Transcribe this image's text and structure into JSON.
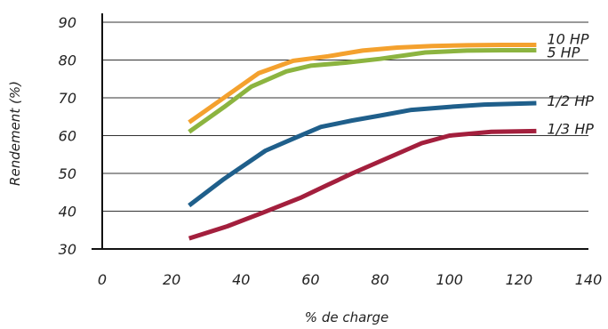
{
  "chart_data": {
    "type": "line",
    "xlabel": "% de charge",
    "ylabel": "Rendement (%)",
    "xlim": [
      0,
      140
    ],
    "ylim": [
      30,
      90
    ],
    "xticks": [
      0,
      20,
      40,
      60,
      80,
      100,
      120,
      140
    ],
    "yticks": [
      30,
      40,
      50,
      60,
      70,
      80,
      90
    ],
    "grid": "horizontal",
    "series": [
      {
        "name": "10 HP",
        "color": "#f4a12e",
        "points": [
          [
            25,
            63.5
          ],
          [
            35,
            70
          ],
          [
            45,
            76.5
          ],
          [
            55,
            79.8
          ],
          [
            65,
            81
          ],
          [
            75,
            82.5
          ],
          [
            85,
            83.3
          ],
          [
            95,
            83.7
          ],
          [
            105,
            83.9
          ],
          [
            115,
            84
          ],
          [
            125,
            84
          ]
        ]
      },
      {
        "name": "5 HP",
        "color": "#8cb440",
        "points": [
          [
            25,
            61
          ],
          [
            35,
            67.5
          ],
          [
            43,
            73
          ],
          [
            53,
            77
          ],
          [
            60,
            78.5
          ],
          [
            70,
            79.3
          ],
          [
            80,
            80.3
          ],
          [
            93,
            82
          ],
          [
            105,
            82.5
          ],
          [
            115,
            82.6
          ],
          [
            125,
            82.6
          ]
        ]
      },
      {
        "name": "1/2 HP",
        "color": "#1f5f8b",
        "points": [
          [
            25,
            41.5
          ],
          [
            35,
            48.5
          ],
          [
            47,
            56
          ],
          [
            55,
            59.2
          ],
          [
            63,
            62.3
          ],
          [
            72,
            64
          ],
          [
            80,
            65.3
          ],
          [
            89,
            66.8
          ],
          [
            100,
            67.6
          ],
          [
            110,
            68.2
          ],
          [
            125,
            68.6
          ]
        ]
      },
      {
        "name": "1/3 HP",
        "color": "#a31f3d",
        "points": [
          [
            25,
            32.8
          ],
          [
            36,
            36
          ],
          [
            46,
            39.5
          ],
          [
            57,
            43.5
          ],
          [
            65,
            47
          ],
          [
            72,
            50
          ],
          [
            82,
            54
          ],
          [
            92,
            58
          ],
          [
            100,
            60
          ],
          [
            112,
            61
          ],
          [
            125,
            61.2
          ]
        ]
      }
    ]
  }
}
